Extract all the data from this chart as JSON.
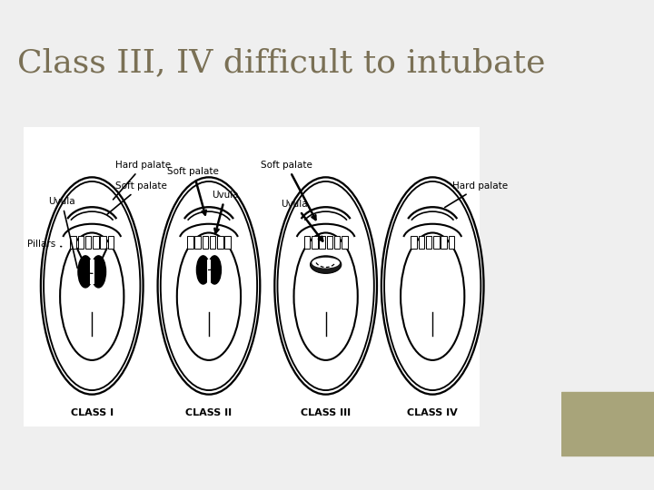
{
  "title": "Class III, IV difficult to intubate",
  "title_color": "#7a7055",
  "title_fontsize": 26,
  "bg_color": "#efefef",
  "panel_color": "#6b6347",
  "panel_color2": "#a8a47a",
  "content_bg": "#ffffff",
  "class_labels": [
    "CLASS I",
    "CLASS II",
    "CLASS III",
    "CLASS IV"
  ],
  "lw": 1.5
}
